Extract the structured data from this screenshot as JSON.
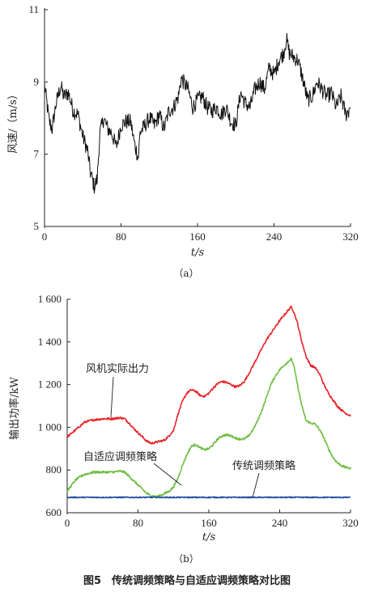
{
  "figure_caption": "图5　传统调频策略与自适应调频策略对比图",
  "chart_data": [
    {
      "type": "line",
      "panel_label": "（a）",
      "xlabel": "t/s",
      "ylabel": "风速/（m/s）",
      "xlim": [
        0,
        320
      ],
      "ylim": [
        5,
        11
      ],
      "xticks": [
        "0",
        "80",
        "160",
        "240",
        "320"
      ],
      "yticks": [
        "5",
        "7",
        "9",
        "11"
      ],
      "grid": false,
      "series": [
        {
          "color": "#111111",
          "x": [
            0,
            5,
            8,
            12,
            17,
            20,
            25,
            30,
            35,
            40,
            45,
            48,
            52,
            55,
            58,
            62,
            66,
            70,
            75,
            80,
            85,
            90,
            94,
            98,
            100,
            105,
            110,
            115,
            120,
            125,
            130,
            135,
            140,
            143,
            150,
            155,
            160,
            165,
            170,
            175,
            180,
            185,
            190,
            195,
            200,
            205,
            210,
            215,
            220,
            225,
            230,
            235,
            240,
            245,
            250,
            253,
            256,
            260,
            265,
            270,
            275,
            280,
            285,
            290,
            295,
            300,
            305,
            310,
            315,
            318,
            320
          ],
          "y": [
            8.9,
            7.9,
            7.7,
            8.4,
            8.9,
            8.6,
            8.7,
            8.2,
            8.1,
            7.5,
            7.1,
            6.5,
            6.1,
            6.3,
            7.6,
            8.0,
            7.7,
            7.6,
            7.2,
            7.8,
            7.9,
            7.9,
            7.3,
            6.9,
            7.6,
            7.8,
            8.0,
            7.8,
            8.1,
            7.7,
            8.2,
            8.3,
            8.6,
            9.1,
            8.8,
            8.3,
            8.5,
            8.6,
            8.3,
            8.2,
            8.3,
            8.1,
            8.3,
            7.9,
            7.8,
            8.7,
            8.4,
            8.3,
            8.8,
            9.0,
            8.8,
            9.4,
            9.2,
            9.6,
            9.8,
            10.2,
            9.8,
            9.7,
            9.6,
            9.1,
            8.5,
            8.6,
            9.0,
            8.8,
            8.6,
            8.7,
            8.3,
            8.6,
            8.1,
            8.2,
            8.4
          ]
        }
      ]
    },
    {
      "type": "line",
      "panel_label": "（b）",
      "xlabel": "t/s",
      "ylabel": "输出功率/kW",
      "xlim": [
        0,
        320
      ],
      "ylim": [
        600,
        1600
      ],
      "xticks": [
        "0",
        "80",
        "160",
        "240",
        "320"
      ],
      "yticks": [
        "600",
        "800",
        "1 000",
        "1 200",
        "1 400",
        "1 600"
      ],
      "grid": false,
      "annotations": [
        "风机实际出力",
        "自适应调频策略",
        "传统调频策略"
      ],
      "series": [
        {
          "name": "风机实际出力",
          "color": "#e8262b",
          "x": [
            0,
            10,
            20,
            30,
            40,
            50,
            60,
            65,
            70,
            75,
            80,
            85,
            90,
            95,
            100,
            105,
            110,
            115,
            120,
            125,
            130,
            135,
            140,
            145,
            150,
            155,
            160,
            165,
            170,
            175,
            180,
            185,
            190,
            195,
            200,
            205,
            210,
            215,
            220,
            225,
            230,
            235,
            240,
            245,
            250,
            253,
            256,
            260,
            265,
            270,
            275,
            280,
            285,
            290,
            295,
            300,
            305,
            310,
            315,
            320
          ],
          "y": [
            955,
            990,
            1025,
            1035,
            1040,
            1040,
            1045,
            1040,
            1020,
            995,
            975,
            955,
            935,
            925,
            930,
            935,
            940,
            960,
            985,
            1060,
            1120,
            1160,
            1175,
            1170,
            1150,
            1145,
            1160,
            1185,
            1205,
            1215,
            1210,
            1200,
            1190,
            1195,
            1215,
            1250,
            1290,
            1330,
            1370,
            1410,
            1440,
            1470,
            1500,
            1525,
            1550,
            1565,
            1540,
            1490,
            1400,
            1330,
            1290,
            1280,
            1250,
            1200,
            1160,
            1130,
            1100,
            1080,
            1065,
            1055
          ]
        },
        {
          "name": "自适应调频策略",
          "color": "#6fbe44",
          "x": [
            0,
            5,
            10,
            15,
            20,
            30,
            40,
            50,
            60,
            65,
            70,
            75,
            80,
            85,
            90,
            95,
            100,
            105,
            110,
            115,
            120,
            125,
            130,
            135,
            140,
            145,
            150,
            155,
            160,
            165,
            170,
            175,
            180,
            185,
            190,
            195,
            200,
            205,
            210,
            215,
            220,
            225,
            230,
            235,
            240,
            245,
            250,
            253,
            256,
            260,
            265,
            270,
            275,
            280,
            285,
            290,
            295,
            300,
            305,
            310,
            315,
            320
          ],
          "y": [
            700,
            730,
            755,
            770,
            780,
            790,
            790,
            790,
            795,
            790,
            770,
            750,
            730,
            710,
            690,
            680,
            675,
            680,
            690,
            700,
            720,
            760,
            820,
            870,
            910,
            920,
            905,
            895,
            900,
            920,
            945,
            960,
            965,
            960,
            950,
            945,
            945,
            960,
            990,
            1030,
            1080,
            1140,
            1200,
            1240,
            1270,
            1290,
            1310,
            1320,
            1290,
            1200,
            1100,
            1030,
            1020,
            1015,
            990,
            950,
            900,
            860,
            835,
            820,
            812,
            808
          ]
        },
        {
          "name": "传统调频策略",
          "color": "#1f4ea3",
          "x": [
            0,
            40,
            80,
            120,
            160,
            200,
            240,
            280,
            320
          ],
          "y": [
            672,
            672,
            672,
            672,
            672,
            672,
            672,
            672,
            672
          ]
        }
      ]
    }
  ]
}
